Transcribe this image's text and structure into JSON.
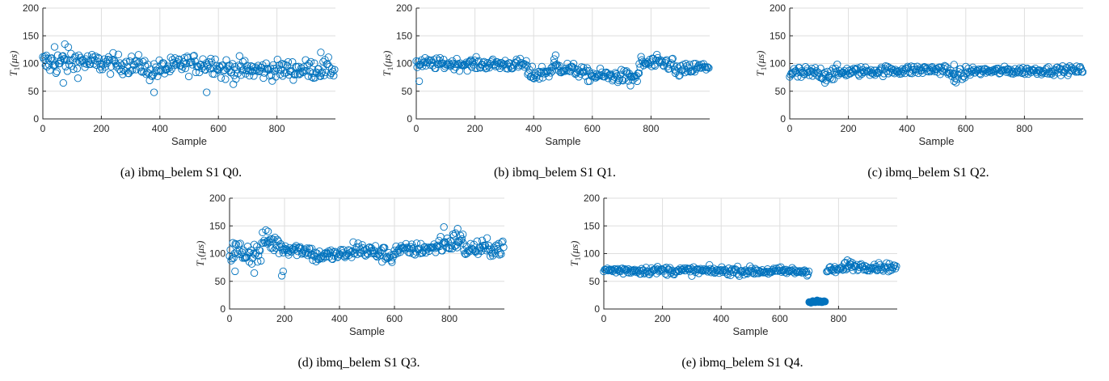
{
  "colors": {
    "marker": "#0072bd",
    "grid": "#dedede",
    "axis": "#262626"
  },
  "chart_data": [
    {
      "type": "scatter",
      "caption": "(a) ibmq_belem S1 Q0.",
      "xlabel": "Sample",
      "ylabel": "T",
      "ylabel_sub": "1",
      "ylabel_unit": "(μs)",
      "xlim": [
        0,
        1000
      ],
      "ylim": [
        0,
        200
      ],
      "xticks": [
        0,
        200,
        400,
        600,
        800
      ],
      "yticks": [
        0,
        50,
        100,
        150,
        200
      ],
      "grid": true,
      "marker": "open-circle",
      "segments": [
        {
          "x": [
            0,
            150
          ],
          "center": [
            100,
            105
          ],
          "spread": 16
        },
        {
          "x": [
            150,
            350
          ],
          "center": [
            102,
            96
          ],
          "spread": 12
        },
        {
          "x": [
            350,
            460
          ],
          "center": [
            85,
            95
          ],
          "spread": 12
        },
        {
          "x": [
            460,
            600
          ],
          "center": [
            98,
            100
          ],
          "spread": 12
        },
        {
          "x": [
            600,
            700
          ],
          "center": [
            90,
            88
          ],
          "spread": 14
        },
        {
          "x": [
            700,
            1000
          ],
          "center": [
            88,
            90
          ],
          "spread": 12
        }
      ],
      "outliers": [
        [
          70,
          65
        ],
        [
          380,
          48
        ],
        [
          560,
          48
        ],
        [
          40,
          130
        ],
        [
          75,
          135
        ],
        [
          950,
          120
        ]
      ]
    },
    {
      "type": "scatter",
      "caption": "(b) ibmq_belem S1 Q1.",
      "xlabel": "Sample",
      "ylabel": "T",
      "ylabel_sub": "1",
      "ylabel_unit": "(μs)",
      "xlim": [
        0,
        1000
      ],
      "ylim": [
        0,
        200
      ],
      "xticks": [
        0,
        200,
        400,
        600,
        800
      ],
      "yticks": [
        0,
        50,
        100,
        150,
        200
      ],
      "grid": true,
      "marker": "open-circle",
      "segments": [
        {
          "x": [
            0,
            380
          ],
          "center": [
            100,
            98
          ],
          "spread": 7
        },
        {
          "x": [
            380,
            470
          ],
          "center": [
            78,
            88
          ],
          "spread": 9
        },
        {
          "x": [
            470,
            570
          ],
          "center": [
            95,
            85
          ],
          "spread": 8
        },
        {
          "x": [
            570,
            760
          ],
          "center": [
            80,
            75
          ],
          "spread": 8
        },
        {
          "x": [
            760,
            880
          ],
          "center": [
            100,
            100
          ],
          "spread": 9
        },
        {
          "x": [
            880,
            1000
          ],
          "center": [
            85,
            95
          ],
          "spread": 8
        }
      ],
      "outliers": [
        [
          10,
          68
        ],
        [
          475,
          115
        ],
        [
          470,
          108
        ],
        [
          730,
          60
        ]
      ]
    },
    {
      "type": "scatter",
      "caption": "(c) ibmq_belem S1 Q2.",
      "xlabel": "Sample",
      "ylabel": "T",
      "ylabel_sub": "1",
      "ylabel_unit": "(μs)",
      "xlim": [
        0,
        1000
      ],
      "ylim": [
        0,
        200
      ],
      "xticks": [
        0,
        200,
        400,
        600,
        800
      ],
      "yticks": [
        0,
        50,
        100,
        150,
        200
      ],
      "grid": true,
      "marker": "open-circle",
      "segments": [
        {
          "x": [
            0,
            180
          ],
          "center": [
            82,
            82
          ],
          "spread": 9
        },
        {
          "x": [
            180,
            540
          ],
          "center": [
            85,
            90
          ],
          "spread": 6
        },
        {
          "x": [
            540,
            600
          ],
          "center": [
            80,
            78
          ],
          "spread": 8
        },
        {
          "x": [
            600,
            1000
          ],
          "center": [
            86,
            88
          ],
          "spread": 5
        }
      ],
      "outliers": [
        [
          560,
          68
        ],
        [
          120,
          65
        ],
        [
          560,
          98
        ]
      ]
    },
    {
      "type": "scatter",
      "caption": "(d) ibmq_belem S1 Q3.",
      "xlabel": "Sample",
      "ylabel": "T",
      "ylabel_sub": "1",
      "ylabel_unit": "(μs)",
      "xlim": [
        0,
        1000
      ],
      "ylim": [
        0,
        200
      ],
      "xticks": [
        0,
        200,
        400,
        600,
        800
      ],
      "yticks": [
        0,
        50,
        100,
        150,
        200
      ],
      "grid": true,
      "marker": "open-circle",
      "segments": [
        {
          "x": [
            0,
            120
          ],
          "center": [
            105,
            100
          ],
          "spread": 15
        },
        {
          "x": [
            120,
            200
          ],
          "center": [
            125,
            112
          ],
          "spread": 12
        },
        {
          "x": [
            200,
            300
          ],
          "center": [
            110,
            105
          ],
          "spread": 8
        },
        {
          "x": [
            300,
            450
          ],
          "center": [
            95,
            100
          ],
          "spread": 8
        },
        {
          "x": [
            450,
            600
          ],
          "center": [
            110,
            95
          ],
          "spread": 10
        },
        {
          "x": [
            600,
            750
          ],
          "center": [
            105,
            110
          ],
          "spread": 8
        },
        {
          "x": [
            750,
            850
          ],
          "center": [
            115,
            125
          ],
          "spread": 12
        },
        {
          "x": [
            850,
            1000
          ],
          "center": [
            108,
            110
          ],
          "spread": 10
        }
      ],
      "outliers": [
        [
          190,
          60
        ],
        [
          195,
          68
        ],
        [
          140,
          140
        ],
        [
          780,
          148
        ],
        [
          830,
          145
        ],
        [
          20,
          68
        ],
        [
          90,
          65
        ]
      ]
    },
    {
      "type": "scatter",
      "caption": "(e) ibmq_belem S1 Q4.",
      "xlabel": "Sample",
      "ylabel": "T",
      "ylabel_sub": "1",
      "ylabel_unit": "(μs)",
      "xlim": [
        0,
        1000
      ],
      "ylim": [
        0,
        200
      ],
      "xticks": [
        0,
        200,
        400,
        600,
        800
      ],
      "yticks": [
        0,
        50,
        100,
        150,
        200
      ],
      "grid": true,
      "marker": "open-circle",
      "segments": [
        {
          "x": [
            0,
            700
          ],
          "center": [
            70,
            68
          ],
          "spread": 5
        },
        {
          "x": [
            700,
            755
          ],
          "center": [
            13,
            13
          ],
          "spread": 2,
          "filled": true
        },
        {
          "x": [
            760,
            820
          ],
          "center": [
            70,
            72
          ],
          "spread": 4
        },
        {
          "x": [
            820,
            1000
          ],
          "center": [
            78,
            75
          ],
          "spread": 5
        }
      ],
      "outliers": [
        [
          830,
          88
        ],
        [
          840,
          85
        ]
      ]
    }
  ]
}
